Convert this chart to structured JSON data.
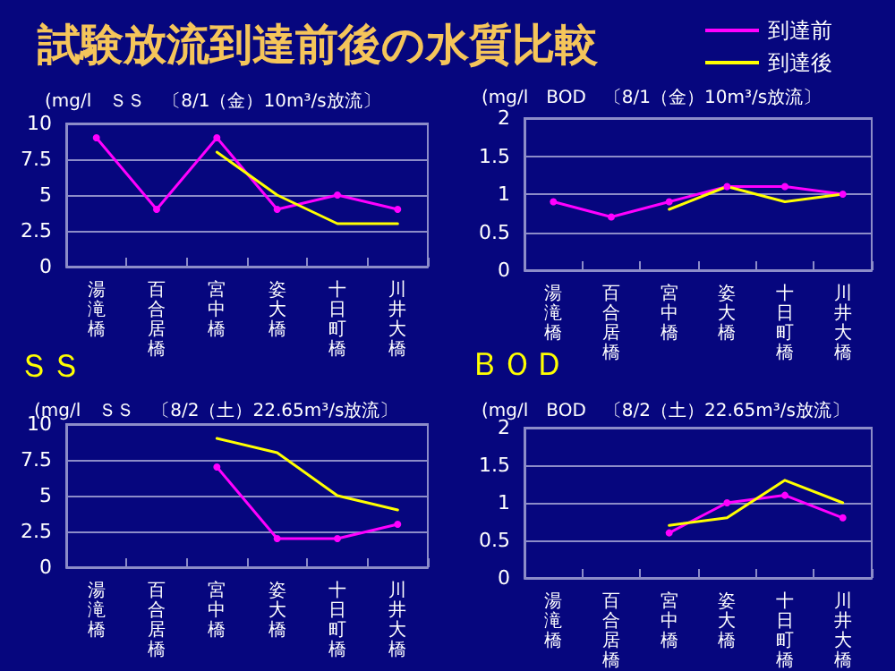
{
  "chart_data": [
    {
      "type": "line",
      "title": "試験放流到達前後の水質比較",
      "subtitle": "(mg/l　ＳＳ　〔8/1（金）10m³/s放流〕",
      "annotations": [
        "ＳＳ"
      ],
      "categories": [
        "湯滝橋",
        "百合居橋",
        "宮中橋",
        "姿大橋",
        "十日町橋",
        "川井大橋"
      ],
      "series": [
        {
          "name": "到達前",
          "color": "#ff00ff",
          "marker": "circle",
          "values": [
            9,
            4,
            9,
            4,
            5,
            4
          ]
        },
        {
          "name": "到達後",
          "color": "#ffff00",
          "marker": "none",
          "values": [
            null,
            null,
            8,
            5,
            3,
            3
          ]
        }
      ],
      "ylim": [
        0,
        10
      ],
      "yticks": [
        0,
        2.5,
        5,
        7.5,
        10
      ],
      "grid": "y",
      "legend": "top right"
    },
    {
      "type": "line",
      "title": "(mg/l　BOD　〔8/1（金）10m³/s放流〕",
      "annotations": [
        "ＢＯＤ"
      ],
      "categories": [
        "湯滝橋",
        "百合居橋",
        "宮中橋",
        "姿大橋",
        "十日町橋",
        "川井大橋"
      ],
      "series": [
        {
          "color": "#ff00ff",
          "marker": "circle",
          "values": [
            0.9,
            0.7,
            0.9,
            1.1,
            1.1,
            1.0
          ]
        },
        {
          "color": "#ffff00",
          "marker": "none",
          "values": [
            null,
            null,
            0.8,
            1.1,
            0.9,
            1.0
          ]
        }
      ],
      "ylim": [
        0,
        2
      ],
      "yticks": [
        0,
        0.5,
        1,
        1.5,
        2
      ],
      "grid": "y"
    },
    {
      "type": "line",
      "title": "(mg/l　ＳＳ　〔8/2（土）22.65m³/s放流〕",
      "categories": [
        "湯滝橋",
        "百合居橋",
        "宮中橋",
        "姿大橋",
        "十日町橋",
        "川井大橋"
      ],
      "series": [
        {
          "color": "#ff00ff",
          "marker": "circle",
          "values": [
            null,
            null,
            7,
            2,
            2,
            3
          ]
        },
        {
          "color": "#ffff00",
          "marker": "none",
          "values": [
            null,
            null,
            9,
            8,
            5,
            4
          ]
        }
      ],
      "ylim": [
        0,
        10
      ],
      "yticks": [
        0,
        2.5,
        5,
        7.5,
        10
      ],
      "grid": "y"
    },
    {
      "type": "line",
      "title": "(mg/l　BOD　〔8/2（土）22.65m³/s放流〕",
      "categories": [
        "湯滝橋",
        "百合居橋",
        "宮中橋",
        "姿大橋",
        "十日町橋",
        "川井大橋"
      ],
      "series": [
        {
          "color": "#ff00ff",
          "marker": "circle",
          "values": [
            null,
            null,
            0.6,
            1.0,
            1.1,
            0.8
          ]
        },
        {
          "color": "#ffff00",
          "marker": "none",
          "values": [
            null,
            null,
            0.7,
            0.8,
            1.3,
            1.0
          ]
        }
      ],
      "ylim": [
        0,
        2
      ],
      "yticks": [
        0,
        0.5,
        1,
        1.5,
        2
      ],
      "grid": "y"
    }
  ]
}
